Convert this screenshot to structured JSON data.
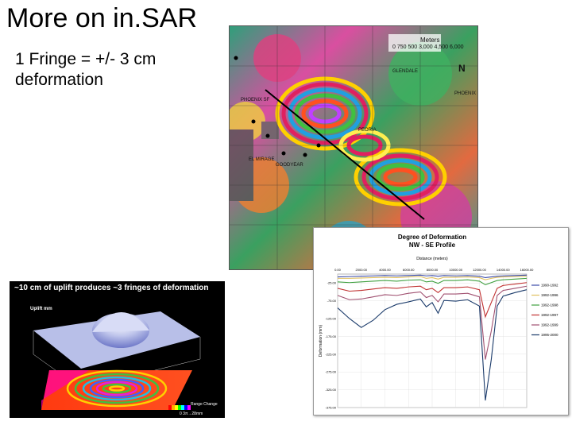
{
  "slide": {
    "title": "More on in.SAR",
    "bullet_line1": "1 Fringe = +/- 3 cm",
    "bullet_line2": "deformation"
  },
  "map": {
    "scale_title": "Meters",
    "scale_ticks": "0 750 500 3,000 4,500 6,000",
    "north_label": "N",
    "places": [
      "GLENDALE",
      "PHOENIX",
      "PEORIA",
      "PHOENIX SF",
      "EL MIRAGE",
      "GOODYEAR"
    ]
  },
  "uplift": {
    "caption": "~10 cm of uplift produces ~3 fringes of deformation",
    "unit": "Uplift mm",
    "range_label": "Range Change",
    "range_scale": "0  3π→28mm"
  },
  "chart_data": {
    "type": "line",
    "title": "Degree of Deformation",
    "subtitle": "NW - SE Profile",
    "xlabel": "Distance (meters)",
    "ylabel": "Deformation (mm)",
    "xlim": [
      0,
      16000
    ],
    "ylim": [
      -375,
      0
    ],
    "x_ticks": [
      "0.00",
      "2000.00",
      "4000.00",
      "6000.00",
      "8000.00",
      "10000.00",
      "12000.00",
      "14000.00",
      "16000.00"
    ],
    "y_ticks": [
      "-25.00",
      "-75.00",
      "-125.00",
      "-175.00",
      "-225.00",
      "-275.00",
      "-325.00",
      "-375.00"
    ],
    "x": [
      0,
      1000,
      2000,
      3000,
      4000,
      5000,
      6000,
      7000,
      7500,
      8000,
      8500,
      9000,
      10000,
      11000,
      12000,
      12500,
      13000,
      13500,
      14000,
      15000,
      16000
    ],
    "series": [
      {
        "name": "1990-1992",
        "color": "#3b4ba8",
        "values": [
          -8,
          -7,
          -6,
          -5,
          -4,
          -5,
          -4,
          -3,
          -5,
          -4,
          -6,
          -4,
          -5,
          -4,
          -6,
          -10,
          -8,
          -6,
          -5,
          -4,
          -3
        ]
      },
      {
        "name": "1992-1996",
        "color": "#e0c060",
        "values": [
          -12,
          -12,
          -11,
          -10,
          -9,
          -10,
          -8,
          -7,
          -12,
          -10,
          -14,
          -9,
          -9,
          -8,
          -10,
          -16,
          -12,
          -9,
          -8,
          -7,
          -6
        ]
      },
      {
        "name": "1992-1998",
        "color": "#40a040",
        "values": [
          -22,
          -24,
          -22,
          -20,
          -18,
          -20,
          -17,
          -16,
          -22,
          -20,
          -26,
          -18,
          -18,
          -16,
          -20,
          -30,
          -24,
          -18,
          -16,
          -14,
          -12
        ]
      },
      {
        "name": "1992-1997",
        "color": "#c03030",
        "values": [
          -40,
          -48,
          -46,
          -42,
          -38,
          -40,
          -36,
          -34,
          -44,
          -40,
          -52,
          -38,
          -38,
          -36,
          -44,
          -120,
          -80,
          -40,
          -32,
          -28,
          -24
        ]
      },
      {
        "name": "1992-1999",
        "color": "#a05070",
        "values": [
          -60,
          -72,
          -70,
          -64,
          -58,
          -60,
          -54,
          -50,
          -66,
          -60,
          -78,
          -56,
          -56,
          -54,
          -64,
          -240,
          -160,
          -60,
          -46,
          -40,
          -34
        ]
      },
      {
        "name": "1995-2000",
        "color": "#1a3a6a",
        "values": [
          -95,
          -125,
          -150,
          -130,
          -100,
          -85,
          -78,
          -70,
          -92,
          -80,
          -110,
          -74,
          -76,
          -72,
          -90,
          -355,
          -240,
          -90,
          -62,
          -52,
          -44
        ]
      }
    ],
    "legend": "right"
  }
}
